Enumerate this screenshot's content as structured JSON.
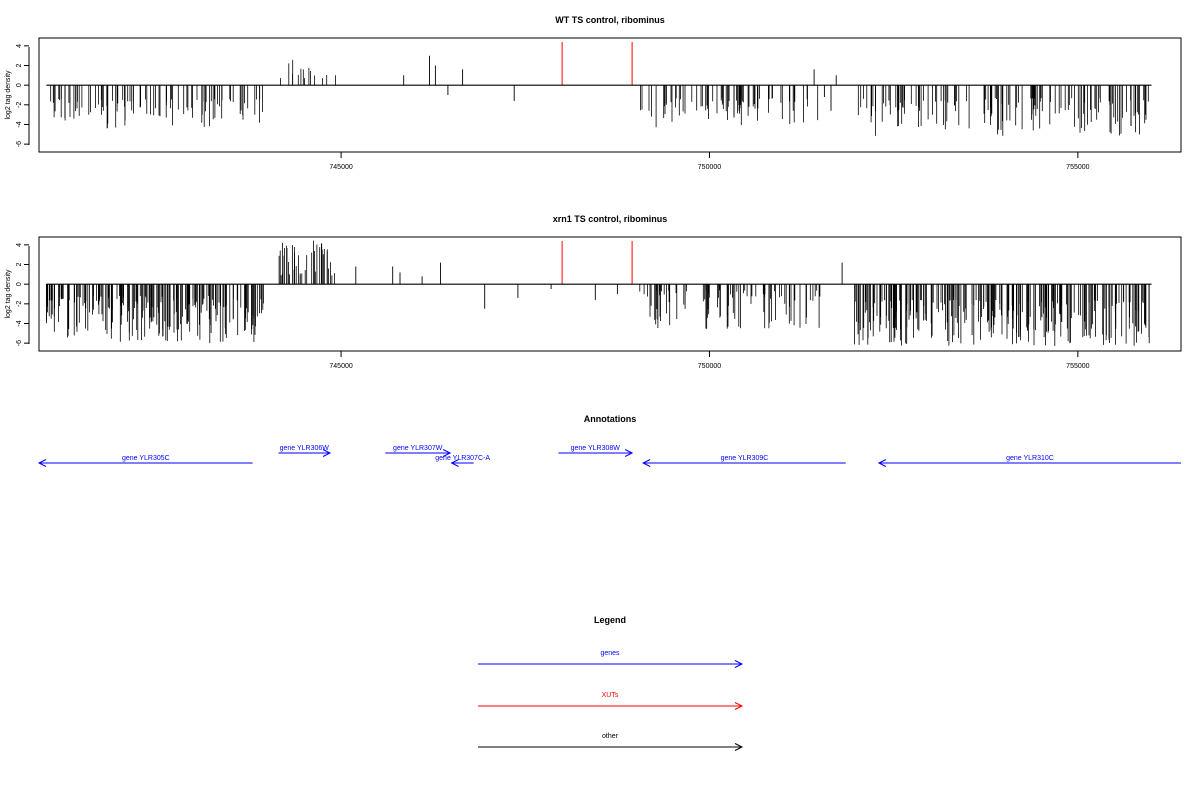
{
  "colors": {
    "gene": "#0000ff",
    "xut": "#ff0000",
    "other": "#000000",
    "track": "#000000"
  },
  "chart_data": [
    {
      "type": "bar",
      "title": "WT TS control, ribominus",
      "ylabel": "log2 tag density",
      "xlim": [
        740900,
        756400
      ],
      "ylim": [
        -6.8,
        4.8
      ],
      "xticks": [
        745000,
        750000,
        755000
      ],
      "xtick_labels": [
        "745000",
        "750000",
        "755000"
      ],
      "yticks": [
        4,
        2,
        0,
        -2,
        -4,
        -6
      ],
      "ytick_labels": [
        "4",
        "2",
        "0",
        "-2",
        "-4",
        "-6"
      ],
      "baseline_range": [
        741000,
        756000
      ],
      "highlight_lines": {
        "color": "red",
        "x": [
          748000,
          748950
        ],
        "y": 4.4
      },
      "segments": [
        {
          "x0": 741000,
          "x1": 743950,
          "sign": -1,
          "n": 95,
          "min": 1.4,
          "max": 4.4,
          "seed": 11
        },
        {
          "x0": 744150,
          "x1": 744950,
          "sign": 1,
          "n": 14,
          "min": 0.6,
          "max": 2.7,
          "seed": 12
        },
        {
          "x0": 748050,
          "x1": 749000,
          "sign": -1,
          "n": 0,
          "min": 0,
          "max": 0,
          "seed": 13
        },
        {
          "x0": 749050,
          "x1": 751500,
          "sign": -1,
          "n": 75,
          "min": 1.3,
          "max": 4.3,
          "seed": 14
        },
        {
          "x0": 752000,
          "x1": 756000,
          "sign": -1,
          "n": 140,
          "min": 1.3,
          "max": 5.2,
          "seed": 15
        }
      ],
      "extra_bars": [
        {
          "x": 745850,
          "y": 1.0
        },
        {
          "x": 746200,
          "y": 3.0
        },
        {
          "x": 746280,
          "y": 2.0
        },
        {
          "x": 746450,
          "y": -1.0
        },
        {
          "x": 746650,
          "y": 1.6
        },
        {
          "x": 747350,
          "y": -1.6
        },
        {
          "x": 751420,
          "y": 1.6
        },
        {
          "x": 751720,
          "y": 1.0
        },
        {
          "x": 751650,
          "y": -2.6
        },
        {
          "x": 751560,
          "y": -1.2
        }
      ]
    },
    {
      "type": "bar",
      "title": "xrn1 TS control, ribominus",
      "ylabel": "log2 tag density",
      "xlim": [
        740900,
        756400
      ],
      "ylim": [
        -6.8,
        4.8
      ],
      "xticks": [
        745000,
        750000,
        755000
      ],
      "xtick_labels": [
        "745000",
        "750000",
        "755000"
      ],
      "yticks": [
        4,
        2,
        0,
        -2,
        -4,
        -6
      ],
      "ytick_labels": [
        "4",
        "2",
        "0",
        "-2",
        "-4",
        "-6"
      ],
      "baseline_range": [
        741000,
        756000
      ],
      "highlight_lines": {
        "color": "red",
        "x": [
          748000,
          748950
        ],
        "y": 4.4
      },
      "segments": [
        {
          "x0": 741000,
          "x1": 743950,
          "sign": -1,
          "n": 200,
          "min": 1.2,
          "max": 6.0,
          "seed": 21
        },
        {
          "x0": 744150,
          "x1": 744950,
          "sign": 1,
          "n": 40,
          "min": 0.8,
          "max": 4.5,
          "seed": 22
        },
        {
          "x0": 749050,
          "x1": 751500,
          "sign": -1,
          "n": 90,
          "min": 0.6,
          "max": 4.7,
          "seed": 24
        },
        {
          "x0": 751950,
          "x1": 756000,
          "sign": -1,
          "n": 260,
          "min": 1.6,
          "max": 6.3,
          "seed": 25
        }
      ],
      "extra_bars": [
        {
          "x": 745200,
          "y": 1.8
        },
        {
          "x": 745700,
          "y": 1.8
        },
        {
          "x": 745800,
          "y": 1.2
        },
        {
          "x": 746100,
          "y": 0.8
        },
        {
          "x": 746350,
          "y": 2.2
        },
        {
          "x": 746950,
          "y": -2.5
        },
        {
          "x": 747400,
          "y": -1.4
        },
        {
          "x": 748450,
          "y": -1.6
        },
        {
          "x": 748750,
          "y": -1.0
        },
        {
          "x": 747850,
          "y": -0.5
        },
        {
          "x": 751800,
          "y": 2.2
        }
      ]
    }
  ],
  "annotations": {
    "title": "Annotations",
    "xlim": [
      740900,
      756400
    ],
    "genes": [
      {
        "label": "gene YLR305C",
        "start": 740900,
        "end": 743800,
        "strand": "-",
        "row": 2
      },
      {
        "label": "gene YLR306W",
        "start": 744150,
        "end": 744850,
        "strand": "+",
        "row": 1
      },
      {
        "label": "gene YLR307W",
        "start": 745600,
        "end": 746480,
        "strand": "+",
        "row": 1
      },
      {
        "label": "gene YLR307C-A",
        "start": 746500,
        "end": 746800,
        "strand": "-",
        "row": 2
      },
      {
        "label": "gene YLR308W",
        "start": 747950,
        "end": 748950,
        "strand": "+",
        "row": 1
      },
      {
        "label": "gene YLR309C",
        "start": 749100,
        "end": 751850,
        "strand": "-",
        "row": 2
      },
      {
        "label": "gene YLR310C",
        "start": 752300,
        "end": 756400,
        "strand": "-",
        "row": 2
      }
    ]
  },
  "legend": {
    "title": "Legend",
    "items": [
      {
        "label": "genes",
        "color": "#0000ff"
      },
      {
        "label": "XUTs",
        "color": "#ff0000"
      },
      {
        "label": "other",
        "color": "#000000"
      }
    ]
  }
}
